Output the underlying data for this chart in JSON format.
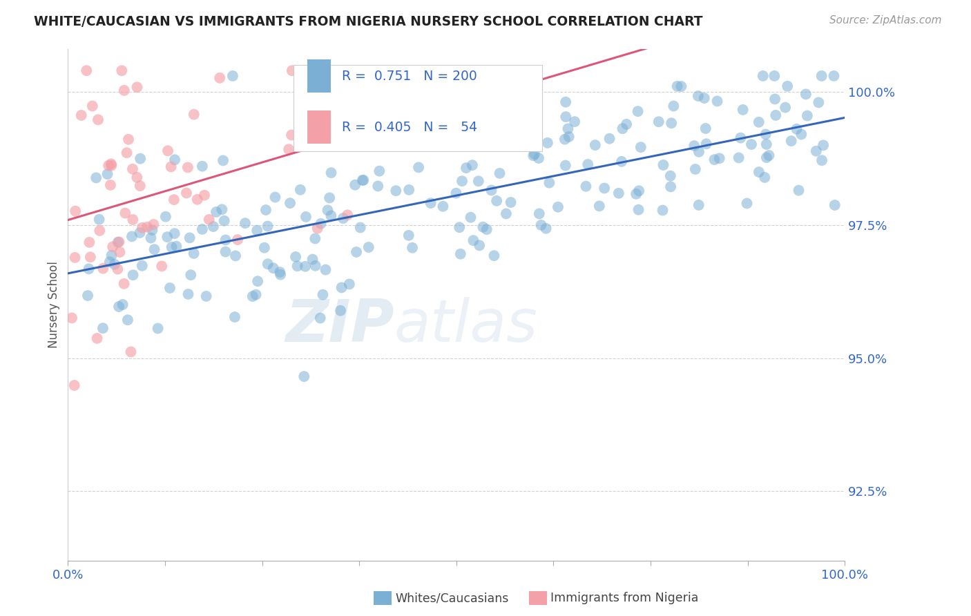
{
  "title": "WHITE/CAUCASIAN VS IMMIGRANTS FROM NIGERIA NURSERY SCHOOL CORRELATION CHART",
  "source": "Source: ZipAtlas.com",
  "ylabel": "Nursery School",
  "blue_R": 0.751,
  "blue_N": 200,
  "pink_R": 0.405,
  "pink_N": 54,
  "blue_color": "#7BAFD4",
  "pink_color": "#F4A0A8",
  "blue_line_color": "#3366BB",
  "pink_line_color": "#DD5577",
  "bg_color": "#FFFFFF",
  "grid_color": "#CCCCCC",
  "label_color": "#3366CC",
  "legend_label_blue": "Whites/Caucasians",
  "legend_label_pink": "Immigrants from Nigeria",
  "watermark_zip": "ZIP",
  "watermark_atlas": "atlas",
  "xmin": 0.0,
  "xmax": 100.0,
  "ymin": 91.2,
  "ymax": 100.8,
  "yticks": [
    92.5,
    95.0,
    97.5,
    100.0
  ],
  "ytick_labels": [
    "92.5%",
    "95.0%",
    "97.5%",
    "100.0%"
  ],
  "xticks": [
    0.0,
    12.5,
    25.0,
    37.5,
    50.0,
    62.5,
    75.0,
    87.5,
    100.0
  ],
  "blue_seed": 42,
  "pink_seed": 7
}
